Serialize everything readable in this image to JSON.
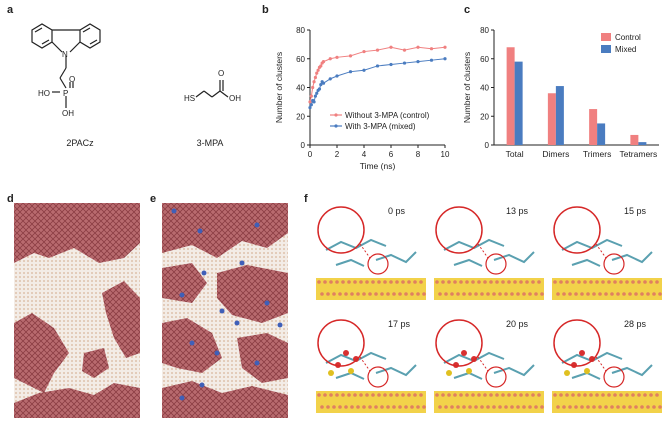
{
  "panels": {
    "a": {
      "label": "a",
      "mol1_name": "2PACz",
      "mol2_name": "3-MPA",
      "atoms": {
        "n": "N",
        "p": "P",
        "o": "O",
        "ho": "HO",
        "oh": "OH",
        "hs": "HS",
        "oh2": "OH",
        "o2": "O"
      }
    },
    "b": {
      "label": "b"
    },
    "c": {
      "label": "c"
    },
    "d": {
      "label": "d"
    },
    "e": {
      "label": "e"
    },
    "f": {
      "label": "f",
      "times": [
        "0 ps",
        "13 ps",
        "15 ps",
        "17 ps",
        "20 ps",
        "28 ps"
      ]
    }
  },
  "chart_data": [
    {
      "type": "line",
      "panel": "b",
      "xlabel": "Time (ns)",
      "ylabel": "Number of clusters",
      "xlim": [
        0,
        10
      ],
      "ylim": [
        0,
        80
      ],
      "xticks": [
        0,
        2,
        4,
        6,
        8,
        10
      ],
      "yticks": [
        0,
        20,
        40,
        60,
        80
      ],
      "legend_position": "bottom-right",
      "series": [
        {
          "name": "Without 3-MPA (control)",
          "color": "#f08080",
          "x": [
            0,
            0.1,
            0.2,
            0.3,
            0.4,
            0.5,
            0.6,
            0.7,
            0.8,
            0.9,
            1.0,
            1.5,
            2,
            3,
            4,
            5,
            6,
            7,
            8,
            9,
            10
          ],
          "y": [
            30,
            34,
            40,
            44,
            47,
            50,
            52,
            54,
            55,
            57,
            58,
            60,
            61,
            62,
            65,
            66,
            68,
            66,
            68,
            67,
            68
          ]
        },
        {
          "name": "With 3-MPA (mixed)",
          "color": "#4a7cc0",
          "x": [
            0,
            0.1,
            0.2,
            0.3,
            0.4,
            0.5,
            0.6,
            0.7,
            0.8,
            0.9,
            1.0,
            1.5,
            2,
            3,
            4,
            5,
            6,
            7,
            8,
            9,
            10
          ],
          "y": [
            26,
            28,
            31,
            30,
            34,
            36,
            38,
            39,
            42,
            44,
            43,
            46,
            48,
            51,
            52,
            55,
            56,
            57,
            58,
            59,
            60
          ]
        }
      ]
    },
    {
      "type": "bar",
      "panel": "c",
      "xlabel": "",
      "ylabel": "Number of clusters",
      "ylim": [
        0,
        80
      ],
      "yticks": [
        0,
        20,
        40,
        60,
        80
      ],
      "categories": [
        "Total",
        "Dimers",
        "Trimers",
        "Tetramers"
      ],
      "legend_position": "top-right",
      "series": [
        {
          "name": "Control",
          "color": "#f08080",
          "values": [
            68,
            36,
            25,
            7
          ]
        },
        {
          "name": "Mixed",
          "color": "#4a7cc0",
          "values": [
            58,
            41,
            15,
            2
          ]
        }
      ]
    }
  ]
}
